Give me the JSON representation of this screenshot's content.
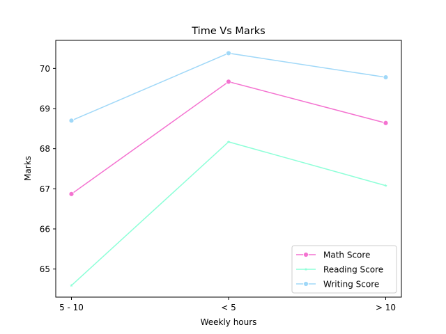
{
  "chart_data": {
    "type": "line",
    "title": "Time Vs Marks",
    "xlabel": "Weekly hours",
    "ylabel": "Marks",
    "categories": [
      "5 - 10",
      "< 5",
      "> 10"
    ],
    "ylim": [
      64.3,
      70.7
    ],
    "yticks": [
      65,
      66,
      67,
      68,
      69,
      70
    ],
    "grid": false,
    "legend_position": "lower-right",
    "series": [
      {
        "name": "Math Score",
        "values": [
          66.87,
          69.67,
          68.64
        ],
        "color": "#f472d0",
        "marker": "circle"
      },
      {
        "name": "Reading Score",
        "values": [
          64.59,
          68.17,
          67.08
        ],
        "color": "#8effd8",
        "marker": "star"
      },
      {
        "name": "Writing Score",
        "values": [
          68.7,
          70.38,
          69.78
        ],
        "color": "#a0d8f8",
        "marker": "circle"
      }
    ]
  }
}
